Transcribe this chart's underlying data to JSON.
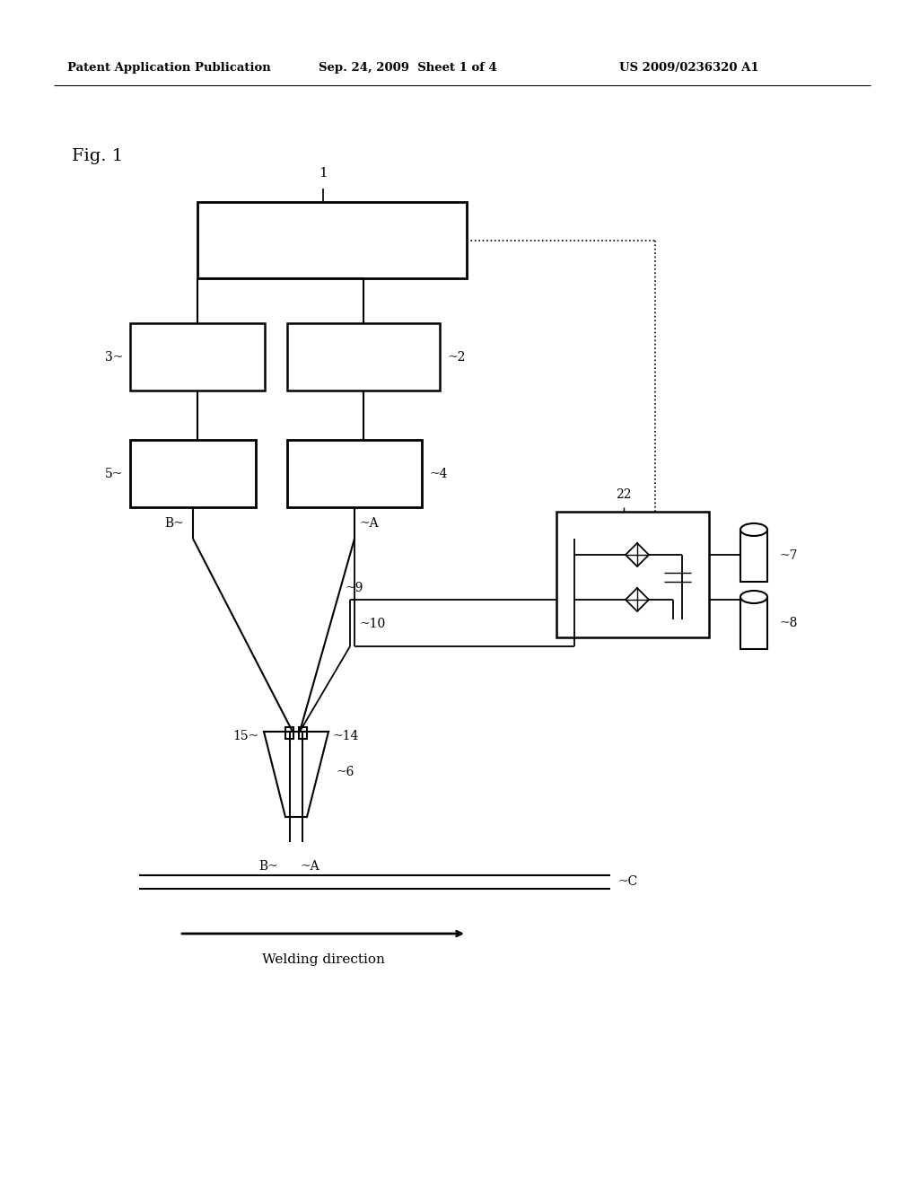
{
  "bg_color": "#ffffff",
  "header_left": "Patent Application Publication",
  "header_mid": "Sep. 24, 2009  Sheet 1 of 4",
  "header_right": "US 2009/0236320 A1",
  "fig_label": "Fig. 1",
  "welding_direction": "Welding direction"
}
